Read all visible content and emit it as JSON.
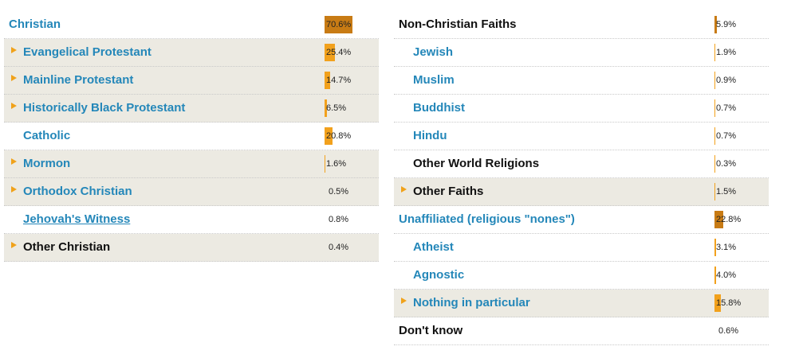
{
  "chart_data": {
    "type": "bar",
    "groups": [
      {
        "panel": "left",
        "rows": [
          {
            "label": "Christian",
            "value": 70.6,
            "display": "70.6%",
            "level": "top",
            "arrow": false,
            "bar": true,
            "color": "blue",
            "link": false
          },
          {
            "label": "Evangelical Protestant",
            "value": 25.4,
            "display": "25.4%",
            "level": "sub",
            "arrow": true,
            "bar": true,
            "color": "blue",
            "link": false
          },
          {
            "label": "Mainline Protestant",
            "value": 14.7,
            "display": "14.7%",
            "level": "sub",
            "arrow": true,
            "bar": true,
            "color": "blue",
            "link": false
          },
          {
            "label": "Historically Black Protestant",
            "value": 6.5,
            "display": "6.5%",
            "level": "sub",
            "arrow": true,
            "bar": true,
            "color": "blue",
            "link": false
          },
          {
            "label": "Catholic",
            "value": 20.8,
            "display": "20.8%",
            "level": "sub",
            "arrow": false,
            "bar": true,
            "color": "blue",
            "link": false
          },
          {
            "label": "Mormon",
            "value": 1.6,
            "display": "1.6%",
            "level": "sub",
            "arrow": true,
            "bar": true,
            "color": "blue",
            "link": false
          },
          {
            "label": "Orthodox Christian",
            "value": 0.5,
            "display": "0.5%",
            "level": "sub",
            "arrow": true,
            "bar": false,
            "color": "blue",
            "link": false
          },
          {
            "label": "Jehovah's Witness",
            "value": 0.8,
            "display": "0.8%",
            "level": "sub",
            "arrow": false,
            "bar": false,
            "color": "blue",
            "link": true
          },
          {
            "label": "Other Christian",
            "value": 0.4,
            "display": "0.4%",
            "level": "sub",
            "arrow": true,
            "bar": false,
            "color": "dark",
            "link": false
          }
        ]
      },
      {
        "panel": "right",
        "rows": [
          {
            "label": "Non-Christian Faiths",
            "value": 5.9,
            "display": "5.9%",
            "level": "top",
            "arrow": false,
            "bar": true,
            "color": "dark",
            "link": false
          },
          {
            "label": "Jewish",
            "value": 1.9,
            "display": "1.9%",
            "level": "sub",
            "arrow": false,
            "bar": true,
            "color": "blue",
            "link": false
          },
          {
            "label": "Muslim",
            "value": 0.9,
            "display": "0.9%",
            "level": "sub",
            "arrow": false,
            "bar": true,
            "color": "blue",
            "link": false
          },
          {
            "label": "Buddhist",
            "value": 0.7,
            "display": "0.7%",
            "level": "sub",
            "arrow": false,
            "bar": true,
            "color": "blue",
            "link": false
          },
          {
            "label": "Hindu",
            "value": 0.7,
            "display": "0.7%",
            "level": "sub",
            "arrow": false,
            "bar": true,
            "color": "blue",
            "link": false
          },
          {
            "label": "Other World Religions",
            "value": 0.3,
            "display": "0.3%",
            "level": "sub",
            "arrow": false,
            "bar": true,
            "color": "dark",
            "link": false
          },
          {
            "label": "Other Faiths",
            "value": 1.5,
            "display": "1.5%",
            "level": "sub",
            "arrow": true,
            "bar": true,
            "color": "dark",
            "link": false
          },
          {
            "label": "Unaffiliated (religious \"nones\")",
            "value": 22.8,
            "display": "22.8%",
            "level": "top",
            "arrow": false,
            "bar": true,
            "color": "blue",
            "link": false
          },
          {
            "label": "Atheist",
            "value": 3.1,
            "display": "3.1%",
            "level": "sub",
            "arrow": false,
            "bar": true,
            "color": "blue",
            "link": false
          },
          {
            "label": "Agnostic",
            "value": 4.0,
            "display": "4.0%",
            "level": "sub",
            "arrow": false,
            "bar": true,
            "color": "blue",
            "link": false
          },
          {
            "label": "Nothing in particular",
            "value": 15.8,
            "display": "15.8%",
            "level": "sub",
            "arrow": true,
            "bar": true,
            "color": "blue",
            "link": false
          },
          {
            "label": "Don't know",
            "value": 0.6,
            "display": "0.6%",
            "level": "top",
            "arrow": false,
            "bar": false,
            "color": "dark",
            "link": false
          }
        ]
      }
    ],
    "xlim": [
      0,
      100
    ]
  },
  "colors": {
    "label_blue": "#2487b9",
    "label_dark": "#111111",
    "bar_sub": "#f2a11c",
    "bar_top": "#c87b14",
    "arrow": "#f0a21b",
    "shaded_row": "#eceae2"
  }
}
